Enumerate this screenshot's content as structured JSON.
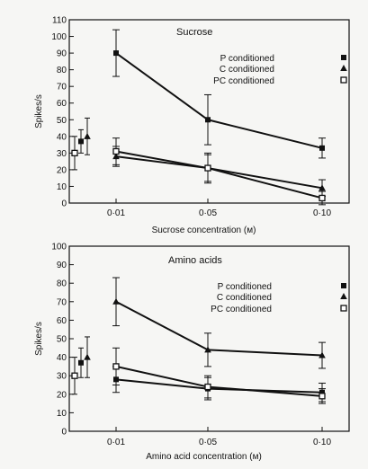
{
  "chart_data": [
    {
      "type": "line",
      "title": "Sucrose",
      "xlabel": "Sucrose concentration (м)",
      "ylabel": "Spikes/s",
      "ylim": [
        0,
        110
      ],
      "yticks": [
        0,
        10,
        20,
        30,
        40,
        50,
        60,
        70,
        80,
        90,
        100,
        110
      ],
      "categories": [
        "0·01",
        "0·05",
        "0·10"
      ],
      "x": [
        0.01,
        0.05,
        0.1
      ],
      "legend_position": "top-right",
      "series": [
        {
          "name": "P conditioned",
          "marker": "square-filled",
          "values": [
            90,
            50,
            33
          ],
          "errors": [
            14,
            15,
            6
          ],
          "baseline": {
            "value": 37,
            "error": 7
          }
        },
        {
          "name": "C conditioned",
          "marker": "triangle-filled",
          "values": [
            28,
            21,
            9
          ],
          "errors": [
            6,
            8,
            5
          ],
          "baseline": {
            "value": 40,
            "error": 11
          }
        },
        {
          "name": "PC conditioned",
          "marker": "square-open",
          "values": [
            31,
            21,
            3
          ],
          "errors": [
            8,
            9,
            4
          ],
          "baseline": {
            "value": 30,
            "error": 10
          }
        }
      ]
    },
    {
      "type": "line",
      "title": "Amino acids",
      "xlabel": "Amino acid concentration (м)",
      "ylabel": "Spikes/s",
      "ylim": [
        0,
        100
      ],
      "yticks": [
        0,
        10,
        20,
        30,
        40,
        50,
        60,
        70,
        80,
        90,
        100
      ],
      "categories": [
        "0·01",
        "0·05",
        "0·10"
      ],
      "x": [
        0.01,
        0.05,
        0.1
      ],
      "legend_position": "top-right",
      "series": [
        {
          "name": "P conditioned",
          "marker": "square-filled",
          "values": [
            28,
            23,
            21
          ],
          "errors": [
            7,
            6,
            5
          ],
          "baseline": {
            "value": 37,
            "error": 8
          }
        },
        {
          "name": "C conditioned",
          "marker": "triangle-filled",
          "values": [
            70,
            44,
            41
          ],
          "errors": [
            13,
            9,
            7
          ],
          "baseline": {
            "value": 40,
            "error": 11
          }
        },
        {
          "name": "PC conditioned",
          "marker": "square-open",
          "values": [
            35,
            24,
            19
          ],
          "errors": [
            10,
            6,
            4
          ],
          "baseline": {
            "value": 30,
            "error": 10
          }
        }
      ]
    }
  ]
}
